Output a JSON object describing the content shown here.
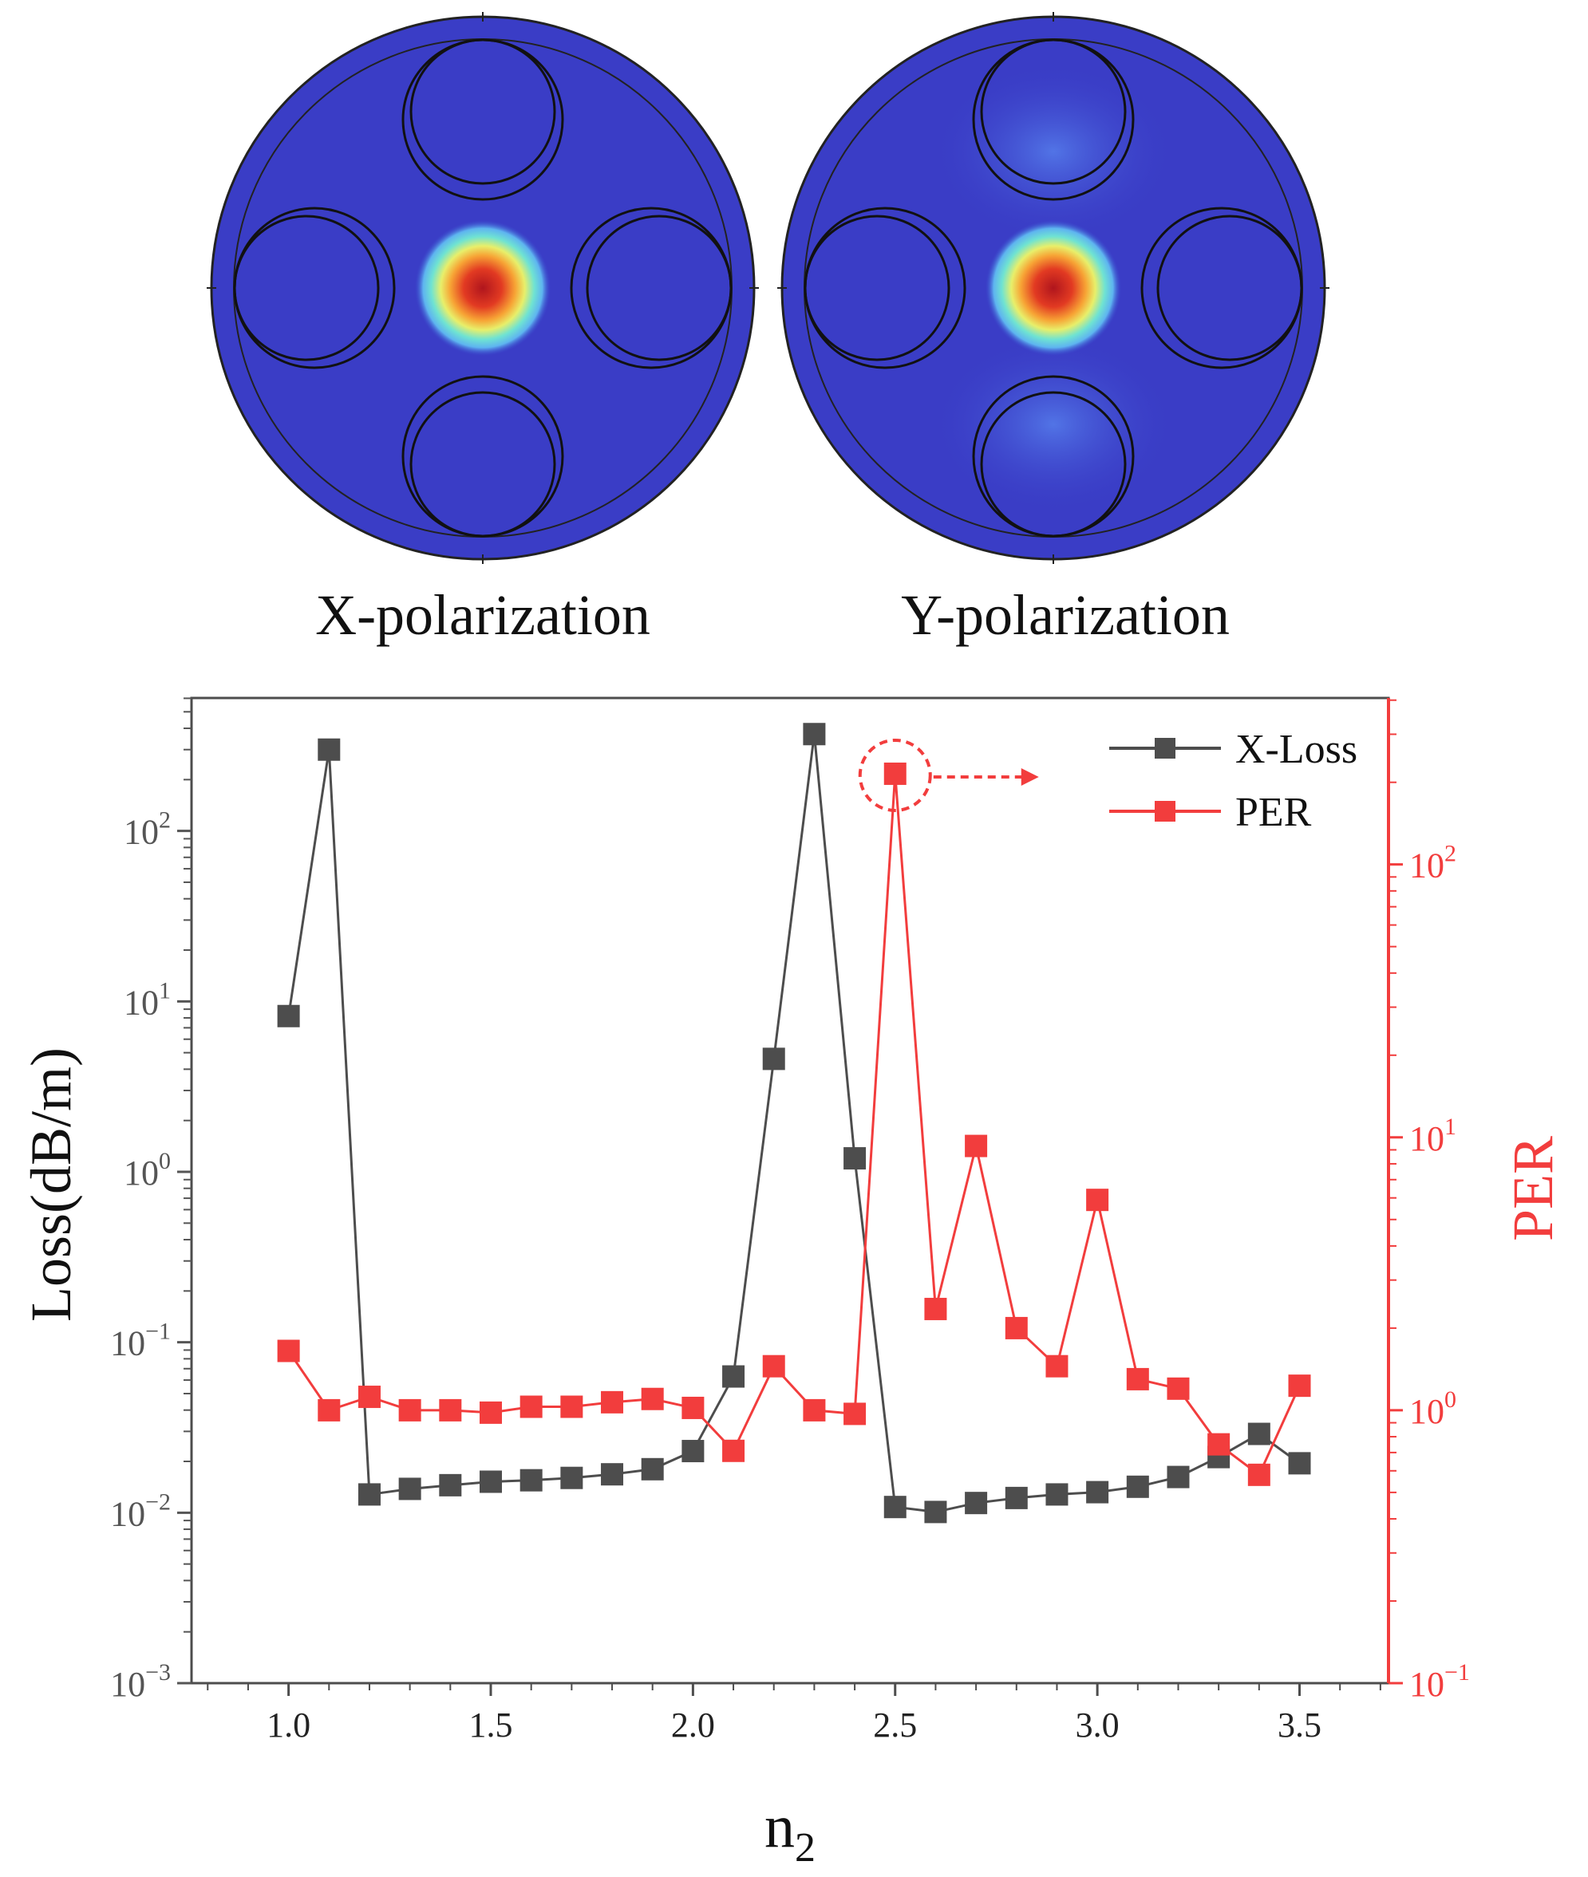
{
  "panels": {
    "x_caption": "X-polarization",
    "y_caption": "Y-polarization"
  },
  "chart_data": {
    "type": "line",
    "xlabel": "n",
    "xlabel_sub": "2",
    "ylabel_left": "Loss(dB/m)",
    "ylabel_right": "PER",
    "x_ticks": [
      {
        "v": 1.0,
        "label": "1.0"
      },
      {
        "v": 1.5,
        "label": "1.5"
      },
      {
        "v": 2.0,
        "label": "2.0"
      },
      {
        "v": 2.5,
        "label": "2.5"
      },
      {
        "v": 3.0,
        "label": "3.0"
      },
      {
        "v": 3.5,
        "label": "3.5"
      }
    ],
    "xlim": [
      0.76,
      3.72
    ],
    "left_axis": {
      "scale": "log",
      "ylim_log10": [
        -3,
        2.78
      ],
      "ticks": [
        {
          "exp": -3,
          "base": "10",
          "sup": "−3"
        },
        {
          "exp": -2,
          "base": "10",
          "sup": "−2"
        },
        {
          "exp": -1,
          "base": "10",
          "sup": "−1"
        },
        {
          "exp": 0,
          "base": "10",
          "sup": "0"
        },
        {
          "exp": 1,
          "base": "10",
          "sup": "1"
        },
        {
          "exp": 2,
          "base": "10",
          "sup": "2"
        }
      ]
    },
    "right_axis": {
      "scale": "log",
      "ylim_log10": [
        -1,
        2.61
      ],
      "ticks": [
        {
          "exp": -1,
          "base": "10",
          "sup": "−1"
        },
        {
          "exp": 0,
          "base": "10",
          "sup": "0"
        },
        {
          "exp": 1,
          "base": "10",
          "sup": "1"
        },
        {
          "exp": 2,
          "base": "10",
          "sup": "2"
        }
      ]
    },
    "x": [
      1.0,
      1.1,
      1.2,
      1.3,
      1.4,
      1.5,
      1.6,
      1.7,
      1.8,
      1.9,
      2.0,
      2.1,
      2.2,
      2.3,
      2.4,
      2.5,
      2.6,
      2.7,
      2.8,
      2.9,
      3.0,
      3.1,
      3.2,
      3.3,
      3.4,
      3.5
    ],
    "series": [
      {
        "name": "X-Loss",
        "axis": "left",
        "color": "#4d4d4d",
        "values": [
          8.2,
          300,
          0.0128,
          0.0138,
          0.0145,
          0.0152,
          0.0155,
          0.016,
          0.0168,
          0.018,
          0.023,
          0.063,
          4.6,
          370,
          1.2,
          0.0108,
          0.0101,
          0.0114,
          0.0122,
          0.0128,
          0.0132,
          0.0142,
          0.0162,
          0.0212,
          0.029,
          0.0195
        ]
      },
      {
        "name": "PER",
        "axis": "right",
        "color": "#f23d3d",
        "values": [
          1.65,
          1.0,
          1.12,
          1.0,
          1.0,
          0.98,
          1.03,
          1.03,
          1.07,
          1.1,
          1.02,
          0.71,
          1.45,
          1.0,
          0.97,
          215,
          2.35,
          9.3,
          2.0,
          1.45,
          5.9,
          1.3,
          1.2,
          0.75,
          0.58,
          1.23
        ]
      }
    ],
    "legend_position": "top-right",
    "annotation": {
      "type": "dashed-circle-arrow",
      "series": "PER",
      "x": 2.5
    }
  }
}
